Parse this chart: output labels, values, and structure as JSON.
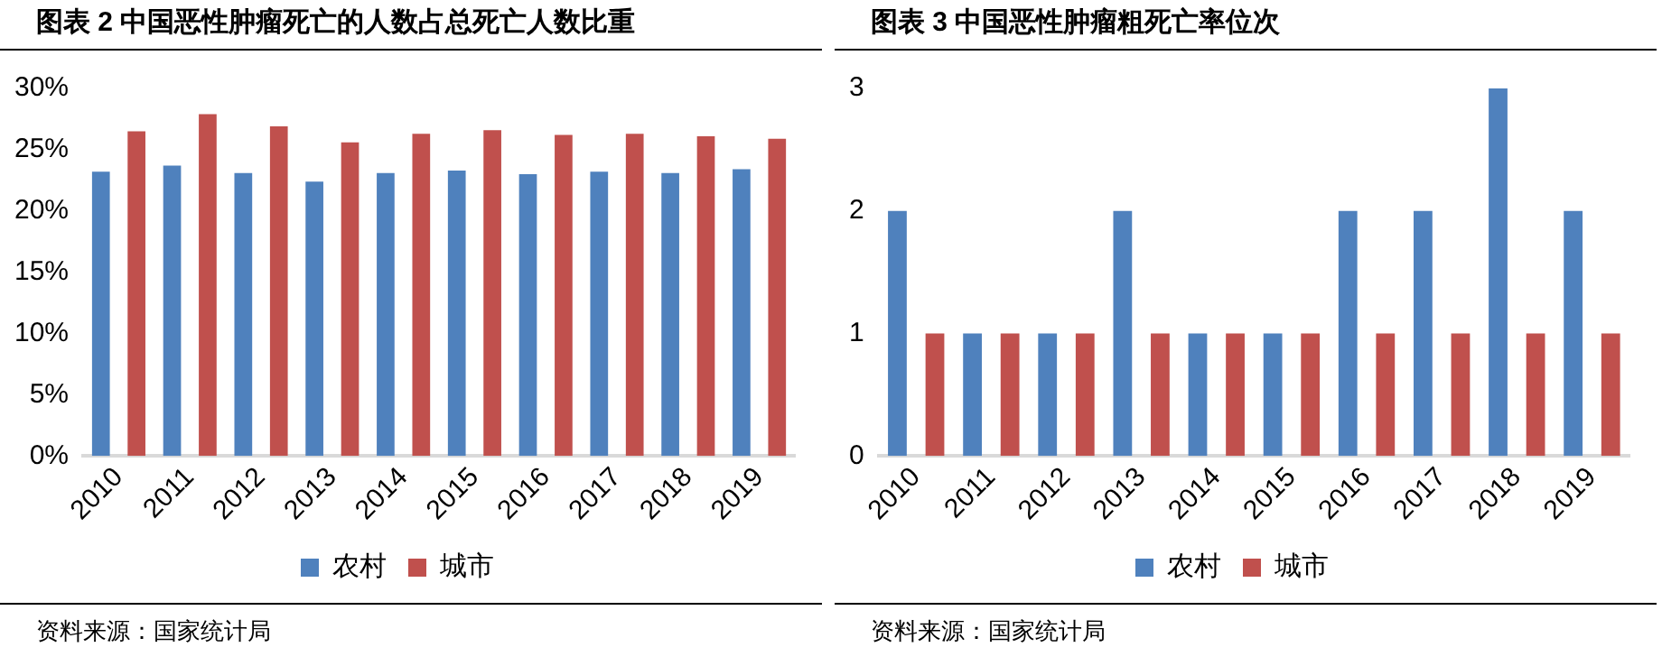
{
  "chart_data": [
    {
      "type": "bar",
      "title": "图表 2 中国恶性肿瘤死亡的人数占总死亡人数比重",
      "categories": [
        "2010",
        "2011",
        "2012",
        "2013",
        "2014",
        "2015",
        "2016",
        "2017",
        "2018",
        "2019"
      ],
      "series": [
        {
          "name": "农村",
          "color": "#4f81bd",
          "values": [
            23.2,
            23.7,
            23.1,
            22.4,
            23.1,
            23.3,
            23.0,
            23.2,
            23.1,
            23.4
          ]
        },
        {
          "name": "城市",
          "color": "#c0504d",
          "values": [
            26.5,
            27.9,
            26.9,
            25.6,
            26.3,
            26.6,
            26.2,
            26.3,
            26.1,
            25.9
          ]
        }
      ],
      "ylim": [
        0,
        30
      ],
      "yticks": [
        {
          "value": 0,
          "label": "0%"
        },
        {
          "value": 5,
          "label": "5%"
        },
        {
          "value": 10,
          "label": "10%"
        },
        {
          "value": 15,
          "label": "15%"
        },
        {
          "value": 20,
          "label": "20%"
        },
        {
          "value": 25,
          "label": "25%"
        },
        {
          "value": 30,
          "label": "30%"
        }
      ],
      "grid": false,
      "legend": "bottom",
      "annotations": [
        "资料来源：国家统计局"
      ]
    },
    {
      "type": "bar",
      "title": "图表 3 中国恶性肿瘤粗死亡率位次",
      "categories": [
        "2010",
        "2011",
        "2012",
        "2013",
        "2014",
        "2015",
        "2016",
        "2017",
        "2018",
        "2019"
      ],
      "series": [
        {
          "name": "农村",
          "color": "#4f81bd",
          "values": [
            2,
            1,
            1,
            2,
            1,
            1,
            2,
            2,
            3,
            2
          ]
        },
        {
          "name": "城市",
          "color": "#c0504d",
          "values": [
            1,
            1,
            1,
            1,
            1,
            1,
            1,
            1,
            1,
            1
          ]
        }
      ],
      "ylim": [
        0,
        3
      ],
      "yticks": [
        0,
        1,
        2,
        3
      ],
      "grid": false,
      "legend": "bottom",
      "annotations": [
        "资料来源：国家统计局"
      ]
    }
  ]
}
